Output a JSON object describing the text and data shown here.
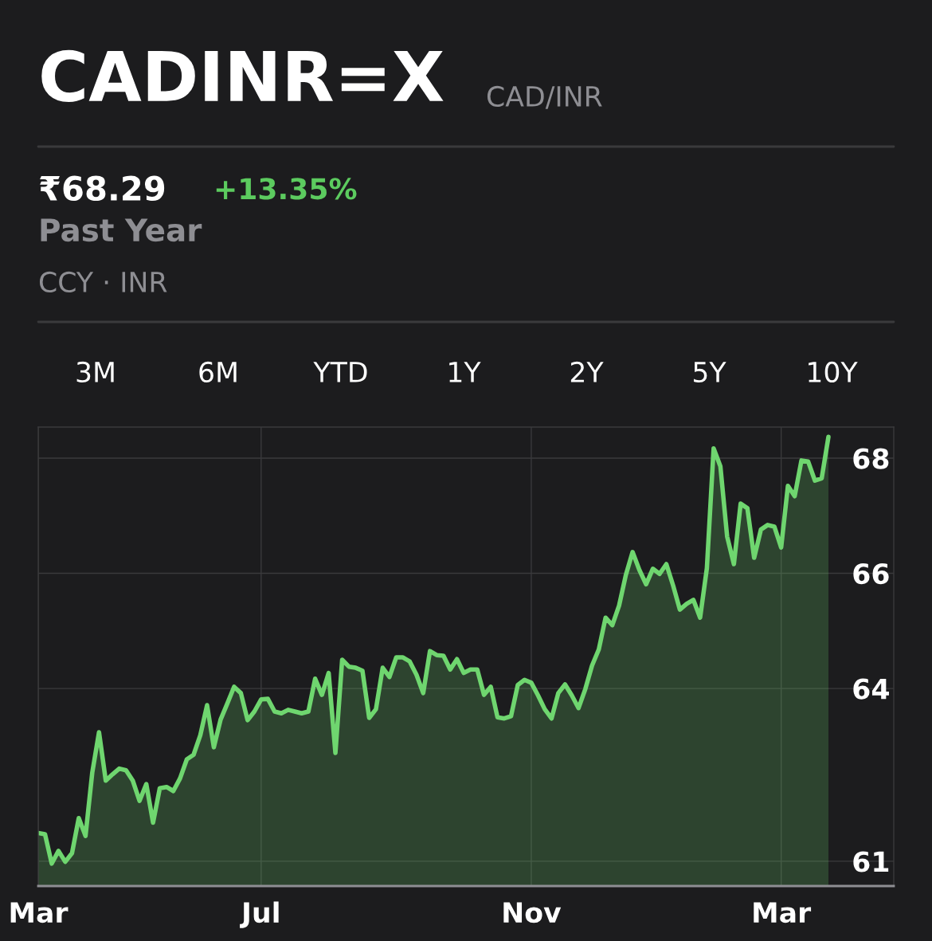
{
  "chart_data": {
    "type": "area",
    "title": "CADINR=X",
    "subtitle": "CAD/INR",
    "annotations": [
      "₹68.29",
      "+13.35%",
      "Past Year",
      "CCY · INR",
      "3M",
      "6M",
      "YTD",
      "1Y",
      "2Y",
      "5Y",
      "10Y"
    ],
    "categories": [
      "Mar",
      null,
      null,
      null,
      null,
      null,
      null,
      null,
      null,
      null,
      null,
      null,
      null,
      null,
      null,
      null,
      null,
      null,
      null,
      null,
      null,
      null,
      null,
      null,
      null,
      null,
      null,
      null,
      null,
      null,
      null,
      null,
      null,
      "Jul",
      null,
      null,
      null,
      null,
      null,
      null,
      null,
      null,
      null,
      null,
      null,
      null,
      null,
      null,
      null,
      null,
      null,
      null,
      null,
      null,
      null,
      null,
      null,
      null,
      null,
      null,
      null,
      null,
      null,
      null,
      null,
      null,
      null,
      null,
      null,
      null,
      null,
      null,
      null,
      "Nov",
      null,
      null,
      null,
      null,
      null,
      null,
      null,
      null,
      null,
      null,
      null,
      null,
      null,
      null,
      null,
      null,
      null,
      null,
      null,
      null,
      null,
      null,
      null,
      null,
      null,
      null,
      null,
      null,
      null,
      null,
      null,
      null,
      null,
      null,
      null,
      null,
      "Mar",
      null,
      null,
      null,
      null,
      null,
      null,
      null
    ],
    "series": [
      {
        "color": "#6fd66f",
        "values": [
          61.49,
          61.47,
          60.96,
          61.18,
          60.99,
          61.14,
          61.75,
          61.44,
          62.54,
          63.24,
          62.4,
          62.51,
          62.61,
          62.58,
          62.4,
          62.05,
          62.34,
          61.67,
          62.27,
          62.29,
          62.22,
          62.44,
          62.77,
          62.85,
          63.19,
          63.71,
          62.98,
          63.46,
          63.74,
          64.03,
          63.92,
          63.45,
          63.6,
          63.81,
          63.82,
          63.6,
          63.57,
          63.63,
          63.6,
          63.57,
          63.6,
          64.17,
          63.89,
          64.27,
          62.88,
          64.5,
          64.38,
          64.36,
          64.31,
          63.49,
          63.64,
          64.36,
          64.2,
          64.54,
          64.54,
          64.47,
          64.24,
          63.92,
          64.65,
          64.58,
          64.57,
          64.33,
          64.51,
          64.27,
          64.33,
          64.33,
          63.89,
          64.03,
          63.5,
          63.48,
          63.52,
          64.06,
          64.15,
          64.1,
          63.88,
          63.64,
          63.48,
          63.92,
          64.07,
          63.88,
          63.66,
          63.99,
          64.4,
          64.68,
          65.23,
          65.1,
          65.44,
          65.97,
          66.37,
          66.06,
          65.81,
          66.08,
          65.99,
          66.16,
          65.79,
          65.37,
          65.47,
          65.54,
          65.23,
          66.09,
          68.17,
          67.86,
          66.64,
          66.16,
          67.21,
          67.13,
          66.27,
          66.76,
          66.84,
          66.81,
          66.45,
          67.52,
          67.34,
          67.96,
          67.94,
          67.61,
          67.65,
          68.37
        ]
      }
    ],
    "ylim": [
      60.57,
      68.54
    ],
    "yticks": [
      61,
      64,
      66,
      68
    ],
    "grid": true,
    "legend": false
  }
}
